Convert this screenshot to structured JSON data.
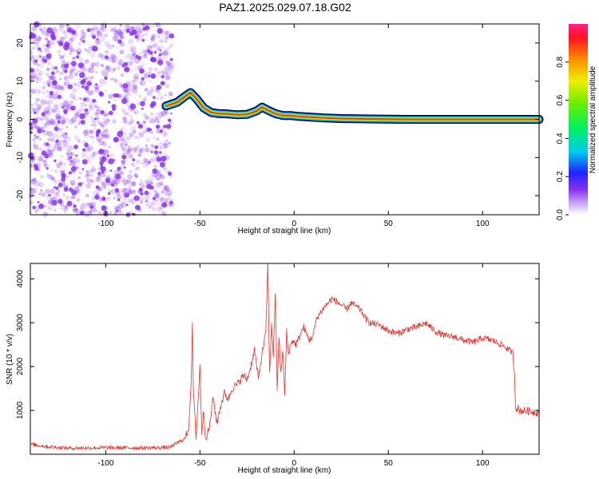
{
  "title": "PAZ1.2025.029.07.18.G02",
  "colors": {
    "snr_line": "#e8312a",
    "spectrum_purple": "#8a33ee",
    "track_core": "#ff2a10",
    "frame": "#000000"
  },
  "chart_data": [
    {
      "type": "heatmap",
      "title": "PAZ1.2025.029.07.18.G02",
      "xlabel": "Height of straight line (km)",
      "ylabel": "Frequency (Hz)",
      "xlim": [
        -140,
        130
      ],
      "ylim": [
        -25,
        25
      ],
      "x_ticks": [
        -100,
        -50,
        0,
        50,
        100
      ],
      "y_ticks": [
        -20,
        -10,
        0,
        10,
        20
      ],
      "noise_region_x": [
        -140,
        -65
      ],
      "track": {
        "x": [
          -68,
          -62,
          -58,
          -55,
          -52,
          -48,
          -44,
          -40,
          -35,
          -30,
          -25,
          -20,
          -17,
          -14,
          -10,
          -6,
          -2,
          2,
          8,
          15,
          25,
          40,
          60,
          80,
          100,
          115,
          130
        ],
        "frequency": [
          3.5,
          4.5,
          6.0,
          7.0,
          5.5,
          3.0,
          1.8,
          1.5,
          1.4,
          1.2,
          1.3,
          2.2,
          3.2,
          2.4,
          1.5,
          1.0,
          1.0,
          0.8,
          0.6,
          0.4,
          0.2,
          0.1,
          0.0,
          0.0,
          0.0,
          0.0,
          0.0
        ]
      },
      "colorbar": {
        "label": "Normalized spectral amplitude",
        "range": [
          0,
          1
        ],
        "ticks": [
          "0.0",
          "0.2",
          "0.4",
          "0.6",
          "0.8"
        ]
      }
    },
    {
      "type": "line",
      "xlabel": "Height of straight line (km)",
      "ylabel": "SNR (10 * v/v)",
      "xlim": [
        -140,
        130
      ],
      "ylim": [
        0,
        4350
      ],
      "x_ticks": [
        -100,
        -50,
        0,
        50,
        100
      ],
      "y_ticks": [
        1000,
        2000,
        3000,
        4000
      ],
      "series": [
        {
          "x": [
            -140,
            -130,
            -120,
            -100,
            -80,
            -66,
            -62,
            -58,
            -56,
            -54.5,
            -54,
            -53.5,
            -52,
            -50,
            -49,
            -48,
            -47,
            -45,
            -43,
            -41,
            -39,
            -37,
            -35,
            -33,
            -30,
            -27,
            -25,
            -23,
            -21,
            -19,
            -17,
            -15,
            -14,
            -13,
            -12,
            -11,
            -10,
            -9,
            -8,
            -7,
            -6,
            -5,
            -4,
            -3,
            -1,
            1,
            3,
            5,
            8,
            10,
            12,
            15,
            18,
            20,
            22,
            25,
            28,
            30,
            32,
            35,
            38,
            40,
            45,
            50,
            55,
            60,
            65,
            70,
            75,
            80,
            85,
            90,
            95,
            100,
            105,
            110,
            115,
            116,
            117,
            117.5,
            118,
            120,
            125,
            130
          ],
          "values": [
            230,
            170,
            140,
            150,
            145,
            155,
            260,
            350,
            600,
            1800,
            3020,
            1400,
            400,
            2000,
            500,
            1000,
            350,
            600,
            1300,
            700,
            1100,
            1400,
            1250,
            1500,
            1600,
            1800,
            1700,
            2000,
            2400,
            1700,
            2300,
            2800,
            4350,
            1800,
            3000,
            2200,
            3700,
            1500,
            2700,
            1800,
            2400,
            1300,
            2800,
            2300,
            2600,
            2500,
            2700,
            2900,
            2600,
            2700,
            3100,
            3300,
            3450,
            3550,
            3500,
            3400,
            3300,
            3450,
            3400,
            3300,
            3100,
            3000,
            2950,
            2820,
            2750,
            2850,
            2900,
            2990,
            2800,
            2700,
            2680,
            2600,
            2550,
            2650,
            2600,
            2500,
            2350,
            2300,
            1800,
            1100,
            1050,
            1000,
            980,
            950
          ]
        }
      ]
    }
  ]
}
